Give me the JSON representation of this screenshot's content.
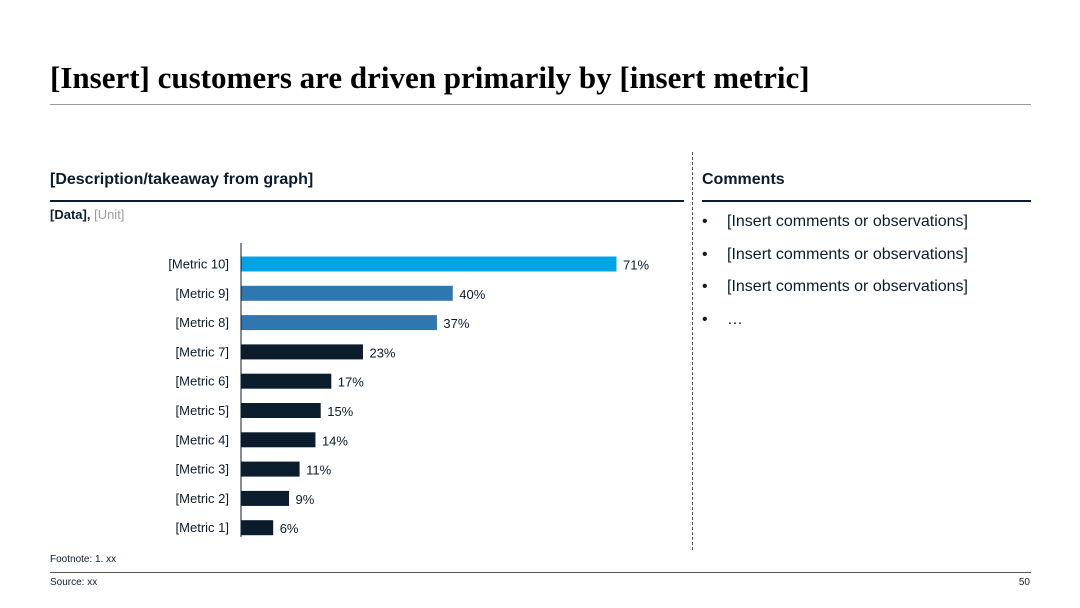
{
  "slide": {
    "title": "[Insert] customers are driven primarily by [insert metric]",
    "page_number": "50"
  },
  "left_panel": {
    "heading": "[Description/takeaway from graph]",
    "data_label": "[Data],",
    "unit_label": "[Unit]"
  },
  "right_panel": {
    "heading": "Comments",
    "bullet_symbol": "•",
    "bullets": [
      "[Insert comments or observations]",
      "[Insert comments or observations]",
      "[Insert comments or observations]",
      "…"
    ]
  },
  "footer": {
    "footnote": "Footnote: 1. xx",
    "source": "Source: xx"
  },
  "chart_data": {
    "type": "bar",
    "orientation": "horizontal",
    "title": "",
    "xlabel": "",
    "ylabel": "",
    "categories": [
      "[Metric 10]",
      "[Metric 9]",
      "[Metric 8]",
      "[Metric 7]",
      "[Metric 6]",
      "[Metric 5]",
      "[Metric 4]",
      "[Metric 3]",
      "[Metric 2]",
      "[Metric 1]"
    ],
    "values": [
      71,
      40,
      37,
      23,
      17,
      15,
      14,
      11,
      9,
      6
    ],
    "value_labels": [
      "71%",
      "40%",
      "37%",
      "23%",
      "17%",
      "15%",
      "14%",
      "11%",
      "9%",
      "6%"
    ],
    "bar_colors": [
      "#00a3e6",
      "#2f77b0",
      "#2f77b0",
      "#0b1c2c",
      "#0b1c2c",
      "#0b1c2c",
      "#0b1c2c",
      "#0b1c2c",
      "#0b1c2c",
      "#0b1c2c"
    ],
    "xlim": [
      0,
      100
    ],
    "grid": false
  }
}
